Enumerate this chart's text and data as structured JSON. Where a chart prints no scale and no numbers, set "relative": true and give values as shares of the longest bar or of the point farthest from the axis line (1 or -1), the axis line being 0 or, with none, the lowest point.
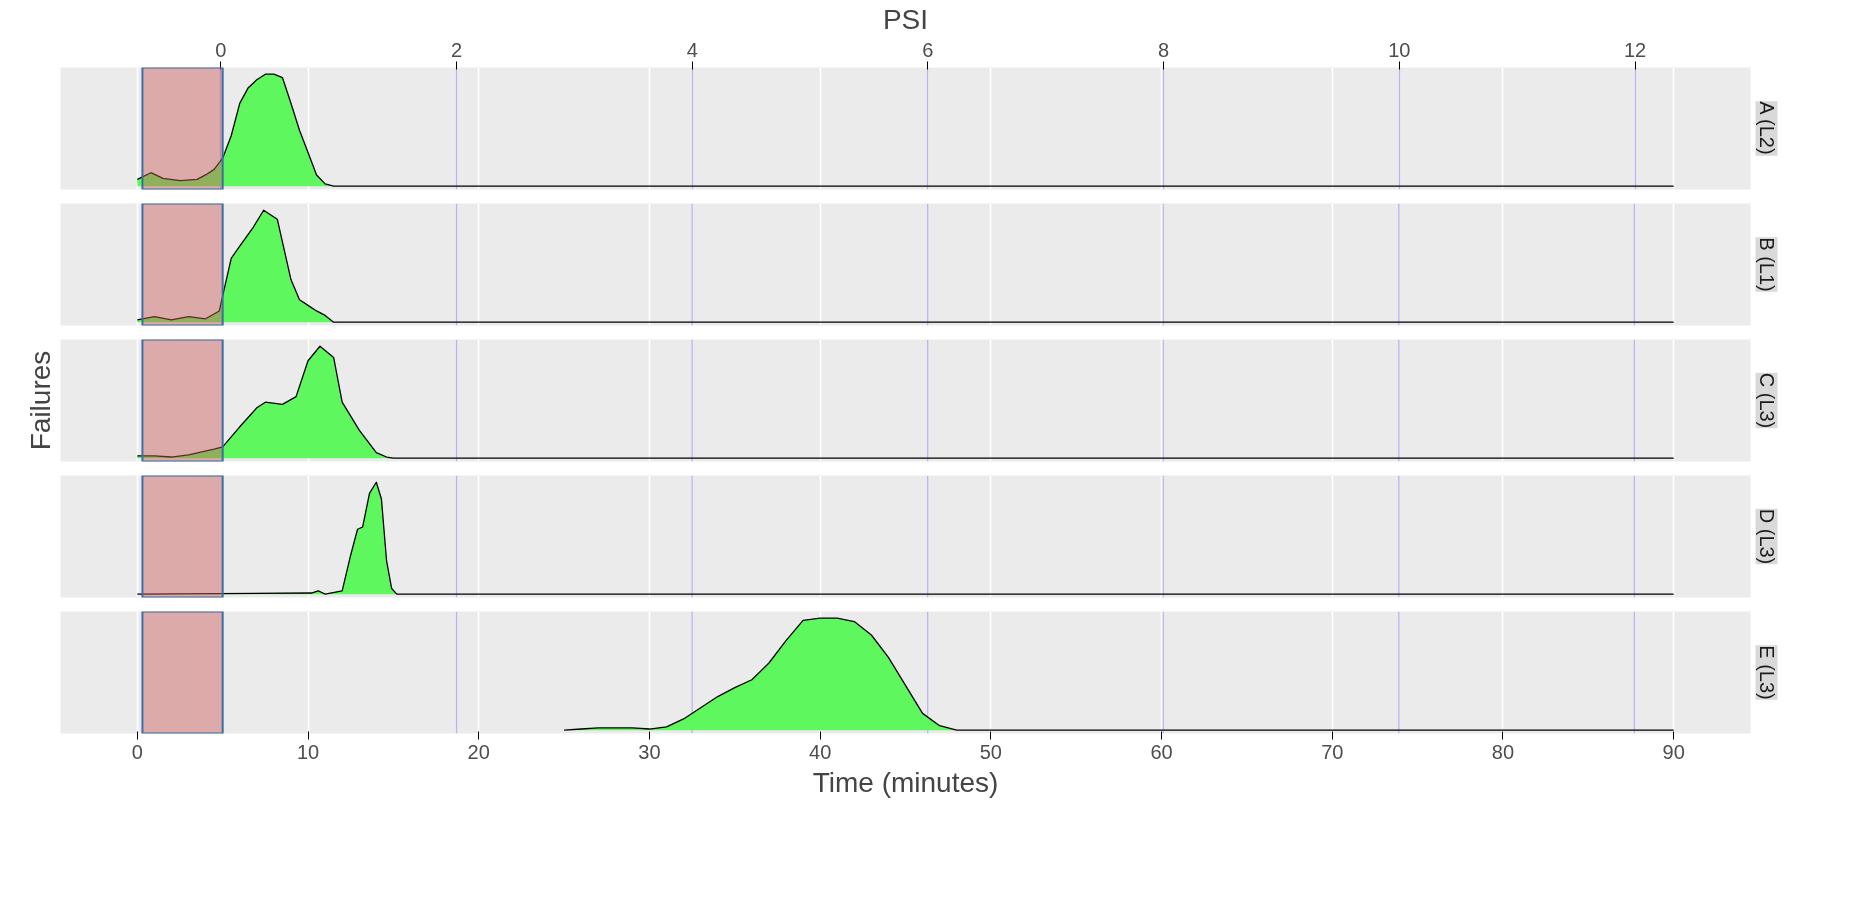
{
  "chart_data": [
    {
      "type": "area",
      "title": "A (L2)",
      "relative": true,
      "color": "#5ef75e",
      "grid": "x",
      "tick_labels": false,
      "x2label": "PSI",
      "xlim": [
        -4.5,
        94.5
      ],
      "xticks": [
        0,
        10,
        20,
        30,
        40,
        50,
        60,
        70,
        80,
        90
      ],
      "x2lim": [
        -1.36,
        12.98
      ],
      "x2ticks": [
        0,
        2,
        4,
        6,
        8,
        10,
        12
      ],
      "x": [
        0,
        0.8,
        1.5,
        2.5,
        3.5,
        4,
        4.5,
        5,
        5.5,
        6,
        6.5,
        7,
        7.5,
        8,
        8.5,
        9,
        9.5,
        10,
        10.5,
        11,
        11.5,
        90
      ],
      "values": [
        0.06,
        0.12,
        0.07,
        0.05,
        0.06,
        0.1,
        0.15,
        0.25,
        0.45,
        0.74,
        0.88,
        0.95,
        1.0,
        1.0,
        0.97,
        0.74,
        0.5,
        0.3,
        0.1,
        0.02,
        0,
        0
      ],
      "bands": [
        {
          "axis": "x",
          "from": 0.3,
          "to": 5,
          "color": "#cc5c5c"
        }
      ]
    },
    {
      "type": "area",
      "title": "B (L1)",
      "relative": true,
      "color": "#5ef75e",
      "grid": "x",
      "tick_labels": false,
      "xlim": [
        -4.5,
        94.5
      ],
      "xticks": [
        0,
        10,
        20,
        30,
        40,
        50,
        60,
        70,
        80,
        90
      ],
      "x": [
        0,
        1,
        2,
        3,
        4,
        4.8,
        5.5,
        6,
        6.8,
        7.4,
        8.2,
        9,
        9.5,
        10,
        10.5,
        11,
        11.5,
        90
      ],
      "values": [
        0.02,
        0.05,
        0.02,
        0.05,
        0.03,
        0.1,
        0.57,
        0.68,
        0.85,
        1.0,
        0.92,
        0.38,
        0.2,
        0.15,
        0.1,
        0.06,
        0,
        0
      ],
      "bands": [
        {
          "axis": "x",
          "from": 0.3,
          "to": 5,
          "color": "#cc5c5c"
        }
      ],
      "ref_lines": [
        {
          "axis": "x",
          "value": 18.7,
          "color": "#b4b4f0"
        },
        {
          "axis": "x",
          "value": 32.5,
          "color": "#b4b4f0"
        },
        {
          "axis": "x",
          "value": 46.3,
          "color": "#b4b4f0"
        },
        {
          "axis": "x",
          "value": 60.1,
          "color": "#b4b4f0"
        },
        {
          "axis": "x",
          "value": 73.9,
          "color": "#b4b4f0"
        },
        {
          "axis": "x",
          "value": 87.7,
          "color": "#b4b4f0"
        }
      ]
    },
    {
      "type": "area",
      "title": "C (L3)",
      "ylabel": "Failures",
      "relative": true,
      "color": "#5ef75e",
      "grid": "x",
      "tick_labels": false,
      "xlim": [
        -4.5,
        94.5
      ],
      "xticks": [
        0,
        10,
        20,
        30,
        40,
        50,
        60,
        70,
        80,
        90
      ],
      "x": [
        0,
        1,
        2,
        3,
        4.5,
        5,
        6,
        7,
        7.5,
        8.5,
        9.3,
        10,
        10.7,
        11.5,
        12,
        13,
        14,
        14.6,
        15,
        90
      ],
      "values": [
        0.02,
        0.02,
        0.01,
        0.03,
        0.08,
        0.1,
        0.28,
        0.45,
        0.5,
        0.48,
        0.55,
        0.87,
        1.0,
        0.9,
        0.5,
        0.25,
        0.05,
        0.01,
        0,
        0
      ],
      "bands": [
        {
          "axis": "x",
          "from": 0.3,
          "to": 5,
          "color": "#cc5c5c"
        }
      ],
      "ref_lines": [
        {
          "axis": "x",
          "value": 18.7,
          "color": "#b4b4f0"
        },
        {
          "axis": "x",
          "value": 32.5,
          "color": "#b4b4f0"
        },
        {
          "axis": "x",
          "value": 46.3,
          "color": "#b4b4f0"
        },
        {
          "axis": "x",
          "value": 60.1,
          "color": "#b4b4f0"
        },
        {
          "axis": "x",
          "value": 73.9,
          "color": "#b4b4f0"
        },
        {
          "axis": "x",
          "value": 87.7,
          "color": "#b4b4f0"
        }
      ]
    },
    {
      "type": "area",
      "title": "D (L3)",
      "relative": true,
      "color": "#5ef75e",
      "grid": "x",
      "tick_labels": false,
      "xlim": [
        -4.5,
        94.5
      ],
      "xticks": [
        0,
        10,
        20,
        30,
        40,
        50,
        60,
        70,
        80,
        90
      ],
      "x": [
        0,
        10.2,
        10.6,
        11,
        12,
        12.5,
        12.9,
        13.2,
        13.6,
        14,
        14.3,
        14.6,
        14.9,
        15.2,
        90
      ],
      "values": [
        0,
        0.01,
        0.03,
        0,
        0.03,
        0.35,
        0.58,
        0.6,
        0.9,
        1.0,
        0.85,
        0.3,
        0.05,
        0,
        0
      ],
      "bands": [
        {
          "axis": "x",
          "from": 0.3,
          "to": 5,
          "color": "#cc5c5c"
        }
      ],
      "ref_lines": [
        {
          "axis": "x",
          "value": 18.7,
          "color": "#b4b4f0"
        },
        {
          "axis": "x",
          "value": 32.5,
          "color": "#b4b4f0"
        },
        {
          "axis": "x",
          "value": 46.3,
          "color": "#b4b4f0"
        },
        {
          "axis": "x",
          "value": 60.1,
          "color": "#b4b4f0"
        },
        {
          "axis": "x",
          "value": 73.9,
          "color": "#b4b4f0"
        },
        {
          "axis": "x",
          "value": 87.7,
          "color": "#b4b4f0"
        }
      ]
    },
    {
      "type": "area",
      "title": "E (L3)",
      "xlabel": "Time (minutes)",
      "relative": true,
      "color": "#5ef75e",
      "grid": "x",
      "tick_labels": "x",
      "xlim": [
        -4.5,
        94.5
      ],
      "xticks": [
        0,
        10,
        20,
        30,
        40,
        50,
        60,
        70,
        80,
        90
      ],
      "x": [
        25,
        26,
        27,
        29,
        30,
        31,
        32,
        33,
        34,
        35,
        36,
        37,
        38,
        39,
        40,
        41,
        42,
        43,
        44,
        45,
        46,
        47,
        48,
        90
      ],
      "values": [
        0,
        0.01,
        0.02,
        0.02,
        0.01,
        0.03,
        0.1,
        0.2,
        0.3,
        0.38,
        0.45,
        0.6,
        0.8,
        0.98,
        1.0,
        1.0,
        0.97,
        0.85,
        0.65,
        0.4,
        0.15,
        0.04,
        0,
        0
      ],
      "bands": [
        {
          "axis": "x",
          "from": 0.3,
          "to": 5,
          "color": "#cc5c5c"
        }
      ],
      "ref_lines": [
        {
          "axis": "x",
          "value": 18.7,
          "color": "#b4b4f0"
        },
        {
          "axis": "x",
          "value": 32.5,
          "color": "#b4b4f0"
        },
        {
          "axis": "x",
          "value": 46.3,
          "color": "#b4b4f0"
        },
        {
          "axis": "x",
          "value": 60.1,
          "color": "#b4b4f0"
        },
        {
          "axis": "x",
          "value": 73.9,
          "color": "#b4b4f0"
        },
        {
          "axis": "x",
          "value": 87.7,
          "color": "#b4b4f0"
        }
      ]
    }
  ]
}
